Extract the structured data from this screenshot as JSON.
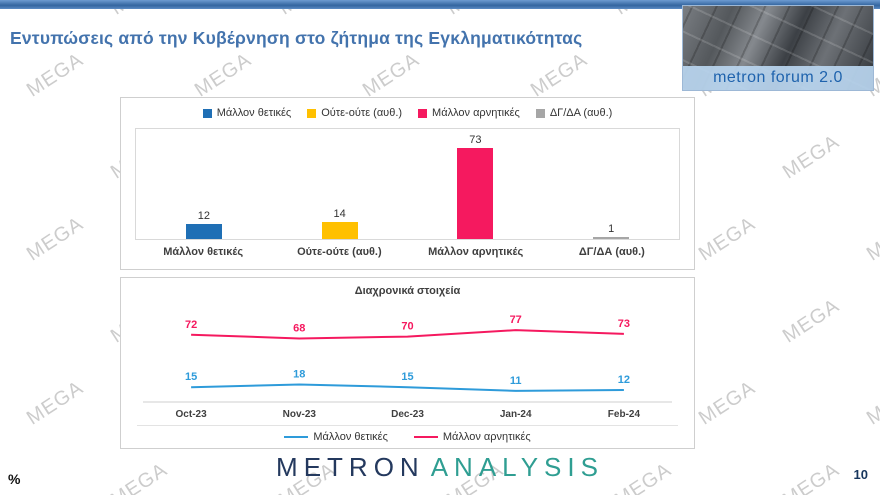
{
  "watermark": {
    "text": "MEGA"
  },
  "header": {
    "title": "Εντυπώσεις από την Κυβέρνηση στο ζήτημα της Εγκληματικότητας",
    "logo": {
      "text": "metron forum 2.0"
    }
  },
  "footer": {
    "unit": "%",
    "page": "10",
    "brand": {
      "primary": "METRON",
      "secondary": "ANALYSIS"
    }
  },
  "colors": {
    "title_blue": "#4373ad",
    "bar_positive": "#1F6FB5",
    "bar_neutral": "#FFC000",
    "bar_negative": "#F5195F",
    "bar_dkda": "#A6A6A6",
    "line_positive": "#2E9BDA",
    "line_negative": "#F5195F"
  },
  "chart_data": [
    {
      "type": "bar",
      "title": "",
      "categories": [
        "Μάλλον θετικές",
        "Ούτε-ούτε (αυθ.)",
        "Μάλλον αρνητικές",
        "ΔΓ/ΔΑ (αυθ.)"
      ],
      "values": [
        12,
        14,
        73,
        1
      ],
      "colors": [
        "#1F6FB5",
        "#FFC000",
        "#F5195F",
        "#A6A6A6"
      ],
      "legend": [
        "Μάλλον θετικές",
        "Ούτε-ούτε (αυθ.)",
        "Μάλλον αρνητικές",
        "ΔΓ/ΔΑ (αυθ.)"
      ],
      "legend_position": "top",
      "ylim": [
        0,
        80
      ],
      "grid": false
    },
    {
      "type": "line",
      "title": "Διαχρονικά στοιχεία",
      "x": [
        "Oct-23",
        "Nov-23",
        "Dec-23",
        "Jan-24",
        "Feb-24"
      ],
      "series": [
        {
          "name": "Μάλλον θετικές",
          "color": "#2E9BDA",
          "values": [
            15,
            18,
            15,
            11,
            12
          ]
        },
        {
          "name": "Μάλλον αρνητικές",
          "color": "#F5195F",
          "values": [
            72,
            68,
            70,
            77,
            73
          ]
        }
      ],
      "ylim": [
        0,
        100
      ],
      "legend_position": "bottom",
      "grid": false
    }
  ]
}
